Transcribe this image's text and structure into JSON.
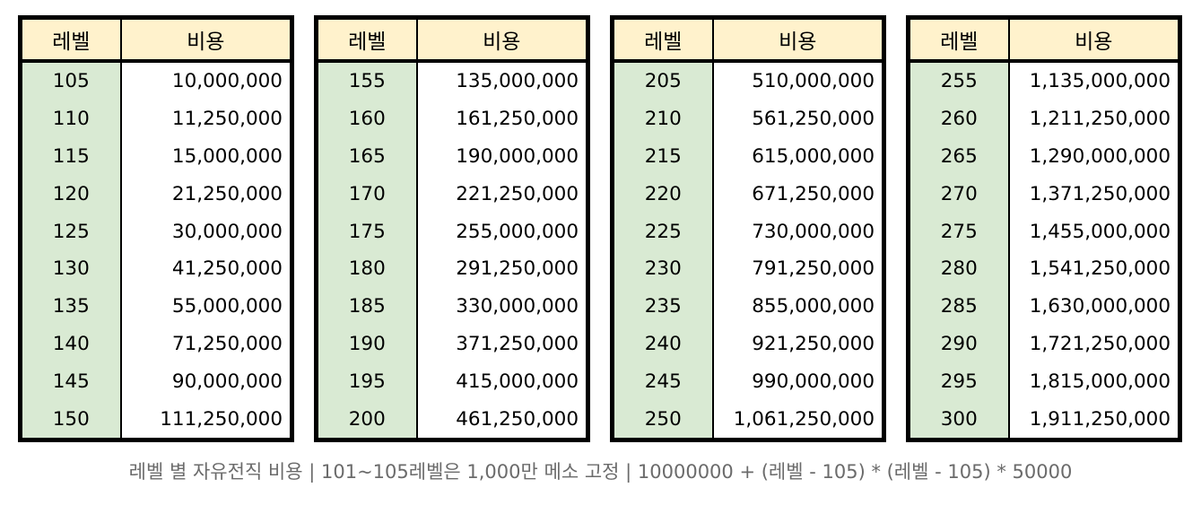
{
  "headers": {
    "level": "레벨",
    "cost": "비용"
  },
  "tables": [
    {
      "rows": [
        [
          "105",
          "10,000,000"
        ],
        [
          "110",
          "11,250,000"
        ],
        [
          "115",
          "15,000,000"
        ],
        [
          "120",
          "21,250,000"
        ],
        [
          "125",
          "30,000,000"
        ],
        [
          "130",
          "41,250,000"
        ],
        [
          "135",
          "55,000,000"
        ],
        [
          "140",
          "71,250,000"
        ],
        [
          "145",
          "90,000,000"
        ],
        [
          "150",
          "111,250,000"
        ]
      ]
    },
    {
      "rows": [
        [
          "155",
          "135,000,000"
        ],
        [
          "160",
          "161,250,000"
        ],
        [
          "165",
          "190,000,000"
        ],
        [
          "170",
          "221,250,000"
        ],
        [
          "175",
          "255,000,000"
        ],
        [
          "180",
          "291,250,000"
        ],
        [
          "185",
          "330,000,000"
        ],
        [
          "190",
          "371,250,000"
        ],
        [
          "195",
          "415,000,000"
        ],
        [
          "200",
          "461,250,000"
        ]
      ]
    },
    {
      "rows": [
        [
          "205",
          "510,000,000"
        ],
        [
          "210",
          "561,250,000"
        ],
        [
          "215",
          "615,000,000"
        ],
        [
          "220",
          "671,250,000"
        ],
        [
          "225",
          "730,000,000"
        ],
        [
          "230",
          "791,250,000"
        ],
        [
          "235",
          "855,000,000"
        ],
        [
          "240",
          "921,250,000"
        ],
        [
          "245",
          "990,000,000"
        ],
        [
          "250",
          "1,061,250,000"
        ]
      ]
    },
    {
      "rows": [
        [
          "255",
          "1,135,000,000"
        ],
        [
          "260",
          "1,211,250,000"
        ],
        [
          "265",
          "1,290,000,000"
        ],
        [
          "270",
          "1,371,250,000"
        ],
        [
          "275",
          "1,455,000,000"
        ],
        [
          "280",
          "1,541,250,000"
        ],
        [
          "285",
          "1,630,000,000"
        ],
        [
          "290",
          "1,721,250,000"
        ],
        [
          "295",
          "1,815,000,000"
        ],
        [
          "300",
          "1,911,250,000"
        ]
      ]
    }
  ],
  "caption": "레벨 별 자유전직 비용 | 101~105레벨은 1,000만 메소 고정 | 10000000 + (레벨 - 105) * (레벨 - 105) * 50000",
  "colors": {
    "header_bg": "#fff2cc",
    "level_bg": "#d9ead3",
    "cost_bg": "#ffffff",
    "border": "#000000",
    "caption_text": "#6b6b6b"
  }
}
